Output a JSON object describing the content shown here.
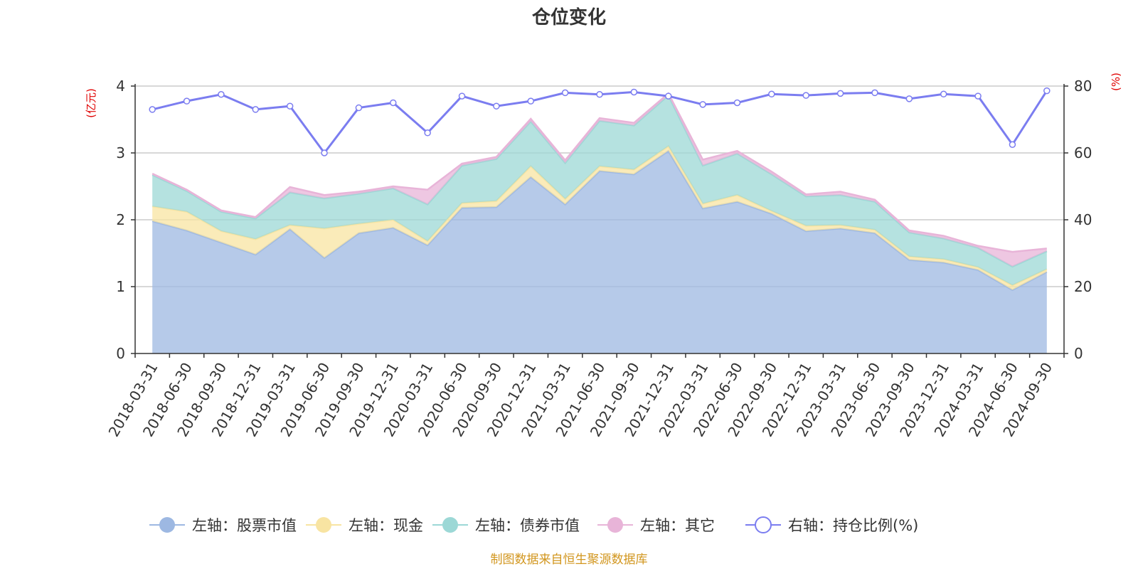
{
  "chart_data": {
    "type": "area",
    "title": "仓位变化",
    "left_axis": {
      "unit_label": "(亿元)",
      "ylim": [
        0,
        4
      ],
      "ticks": [
        "0",
        "1",
        "2",
        "3",
        "4"
      ]
    },
    "right_axis": {
      "unit_label": "(%)",
      "ylim": [
        0,
        80
      ],
      "ticks": [
        "0",
        "20",
        "40",
        "60",
        "80"
      ]
    },
    "categories": [
      "2018-03-31",
      "2018-06-30",
      "2018-09-30",
      "2018-12-31",
      "2019-03-31",
      "2019-06-30",
      "2019-09-30",
      "2019-12-31",
      "2020-03-31",
      "2020-06-30",
      "2020-09-30",
      "2020-12-31",
      "2021-03-31",
      "2021-06-30",
      "2021-09-30",
      "2021-12-31",
      "2022-03-31",
      "2022-06-30",
      "2022-09-30",
      "2022-12-31",
      "2023-03-31",
      "2023-06-30",
      "2023-09-30",
      "2023-12-31",
      "2024-03-31",
      "2024-06-30",
      "2024-09-30"
    ],
    "series": [
      {
        "name": "左轴：股票市值",
        "axis": "left",
        "stacked": true,
        "color": "#9db8e2",
        "values": [
          1.98,
          1.84,
          1.66,
          1.48,
          1.86,
          1.43,
          1.8,
          1.88,
          1.62,
          2.18,
          2.19,
          2.64,
          2.23,
          2.73,
          2.68,
          3.03,
          2.17,
          2.27,
          2.09,
          1.83,
          1.87,
          1.8,
          1.4,
          1.36,
          1.25,
          0.95,
          1.22
        ]
      },
      {
        "name": "左轴：现金",
        "axis": "left",
        "stacked": true,
        "color": "#f8e4a2",
        "values": [
          0.22,
          0.28,
          0.17,
          0.23,
          0.06,
          0.44,
          0.14,
          0.12,
          0.06,
          0.07,
          0.09,
          0.16,
          0.08,
          0.07,
          0.07,
          0.07,
          0.07,
          0.1,
          0.04,
          0.08,
          0.05,
          0.05,
          0.05,
          0.05,
          0.04,
          0.07,
          0.04
        ]
      },
      {
        "name": "左轴：债券市值",
        "axis": "left",
        "stacked": true,
        "color": "#9cd8d6",
        "values": [
          0.47,
          0.31,
          0.29,
          0.31,
          0.49,
          0.45,
          0.45,
          0.47,
          0.55,
          0.56,
          0.63,
          0.67,
          0.54,
          0.68,
          0.66,
          0.76,
          0.57,
          0.62,
          0.55,
          0.44,
          0.45,
          0.42,
          0.36,
          0.31,
          0.29,
          0.28,
          0.27
        ]
      },
      {
        "name": "左轴：其它",
        "axis": "left",
        "stacked": true,
        "color": "#e8b4d8",
        "values": [
          0.02,
          0.02,
          0.02,
          0.02,
          0.08,
          0.05,
          0.03,
          0.03,
          0.22,
          0.03,
          0.03,
          0.04,
          0.04,
          0.04,
          0.04,
          0.03,
          0.09,
          0.04,
          0.04,
          0.03,
          0.05,
          0.03,
          0.03,
          0.04,
          0.03,
          0.22,
          0.04
        ]
      },
      {
        "name": "右轴：持仓比例(%)",
        "axis": "right",
        "type": "line",
        "color": "#7b7df0",
        "values": [
          73.0,
          75.5,
          77.5,
          73.0,
          74.0,
          60.0,
          73.5,
          75.0,
          66.0,
          77.0,
          74.0,
          75.5,
          78.0,
          77.5,
          78.2,
          77.0,
          74.5,
          75.0,
          77.6,
          77.2,
          77.8,
          78.0,
          76.2,
          77.6,
          77.0,
          62.5,
          78.6
        ]
      }
    ],
    "legend_position": "bottom",
    "grid": true
  },
  "footer": {
    "source": "制图数据来自恒生聚源数据库"
  }
}
